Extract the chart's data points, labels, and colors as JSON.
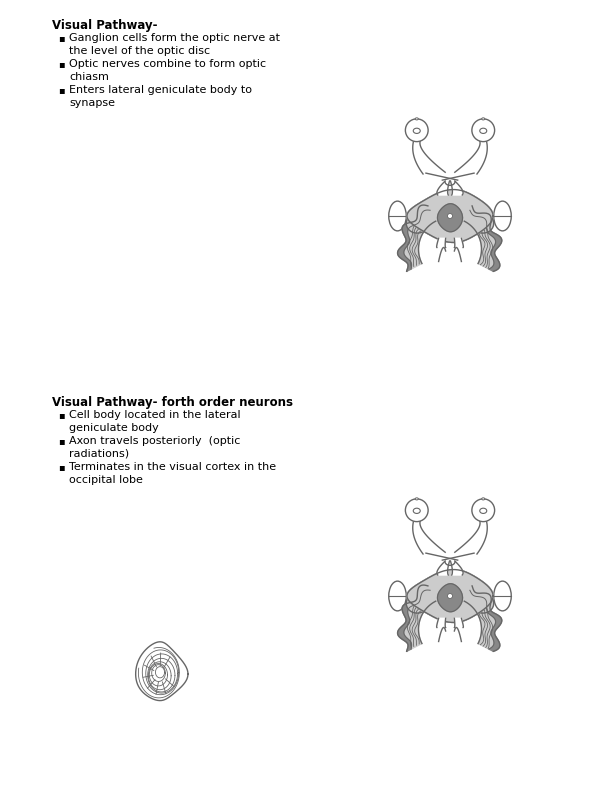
{
  "title1": "Visual Pathway-",
  "bullets1": [
    "Ganglion cells form the optic nerve at\nthe level of the optic disc",
    "Optic nerves combine to form optic\nchiasm",
    "Enters lateral geniculate body to\nsynapse"
  ],
  "title2": "Visual Pathway- forth order neurons",
  "bullets2": [
    "Cell body located in the lateral\ngeniculate body",
    "Axon travels posteriorly  (optic\nradiations)",
    "Terminates in the visual cortex in the\noccipital lobe"
  ],
  "bg_color": "#ffffff",
  "line_color": "#666666",
  "fill_light": "#cccccc",
  "fill_mid": "#b0b0b0",
  "fill_dark": "#888888",
  "text_color": "#000000",
  "title_fontsize": 8.5,
  "bullet_fontsize": 8,
  "fig_width": 6.12,
  "fig_height": 7.92
}
